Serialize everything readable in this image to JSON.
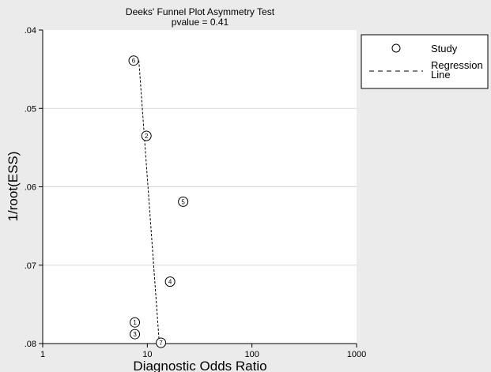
{
  "chart_data": {
    "type": "scatter",
    "title": "Deeks' Funnel Plot Asymmetry Test",
    "subtitle": "pvalue  =   0.41",
    "xlabel": "Diagnostic Odds Ratio",
    "ylabel": "1/root(ESS)",
    "xscale": "log",
    "xlim": [
      1,
      1000
    ],
    "ylim": [
      0.04,
      0.08
    ],
    "y_reversed": true,
    "grid": "horizontal",
    "x_ticks": [
      {
        "value": 1,
        "label": "1"
      },
      {
        "value": 10,
        "label": "10"
      },
      {
        "value": 100,
        "label": "100"
      },
      {
        "value": 1000,
        "label": "1000"
      }
    ],
    "y_ticks": [
      {
        "value": 0.04,
        "label": ".04"
      },
      {
        "value": 0.05,
        "label": ".05"
      },
      {
        "value": 0.06,
        "label": ".06"
      },
      {
        "value": 0.07,
        "label": ".07"
      },
      {
        "value": 0.08,
        "label": ".08"
      }
    ],
    "points": [
      {
        "label": "1",
        "x": 7.6,
        "y": 0.0773
      },
      {
        "label": "2",
        "x": 9.8,
        "y": 0.0535
      },
      {
        "label": "3",
        "x": 7.6,
        "y": 0.0788
      },
      {
        "label": "4",
        "x": 16.5,
        "y": 0.0721
      },
      {
        "label": "5",
        "x": 22.0,
        "y": 0.0619
      },
      {
        "label": "6",
        "x": 7.4,
        "y": 0.0439
      },
      {
        "label": "7",
        "x": 13.5,
        "y": 0.0799
      }
    ],
    "regression_line": [
      {
        "x": 8.3,
        "y": 0.0439
      },
      {
        "x": 13.0,
        "y": 0.0799
      }
    ],
    "legend": {
      "position": "right",
      "items": [
        {
          "symbol": "circle",
          "label": "Study"
        },
        {
          "symbol": "dashed-line",
          "label": "Regression Line"
        }
      ]
    },
    "colors": {
      "background": "#ebebeb",
      "plot_area": "#ffffff",
      "grid": "#d9d9d9",
      "ink": "#000000"
    }
  }
}
